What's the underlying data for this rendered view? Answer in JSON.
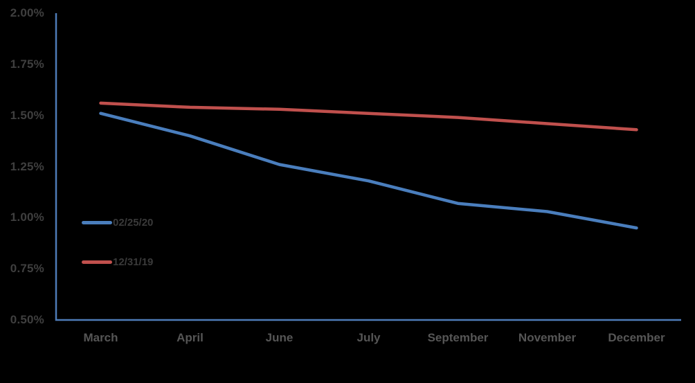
{
  "chart_data": {
    "type": "line",
    "title": "",
    "xlabel": "",
    "ylabel": "",
    "unit": "%",
    "categories": [
      "March",
      "April",
      "June",
      "July",
      "September",
      "November",
      "December"
    ],
    "series": [
      {
        "name": "02/25/20",
        "color": "#4A7EBD",
        "values": [
          1.51,
          1.4,
          1.26,
          1.18,
          1.07,
          1.03,
          0.95
        ]
      },
      {
        "name": "12/31/19",
        "color": "#C0504D",
        "values": [
          1.56,
          1.54,
          1.53,
          1.51,
          1.49,
          1.46,
          1.43
        ]
      }
    ],
    "y_ticks": [
      "2.00%",
      "1.75%",
      "1.50%",
      "1.25%",
      "1.00%",
      "0.75%",
      "0.50%"
    ],
    "ylim": [
      0.5,
      2.0
    ],
    "grid": false,
    "legend_position": "inside-left",
    "axis_color": "#4E7CB8",
    "background_color": "#000000",
    "tick_label_color": "#3F3F3F",
    "category_label_color": "#565656",
    "legend_text_color": "#3A3A3A"
  }
}
